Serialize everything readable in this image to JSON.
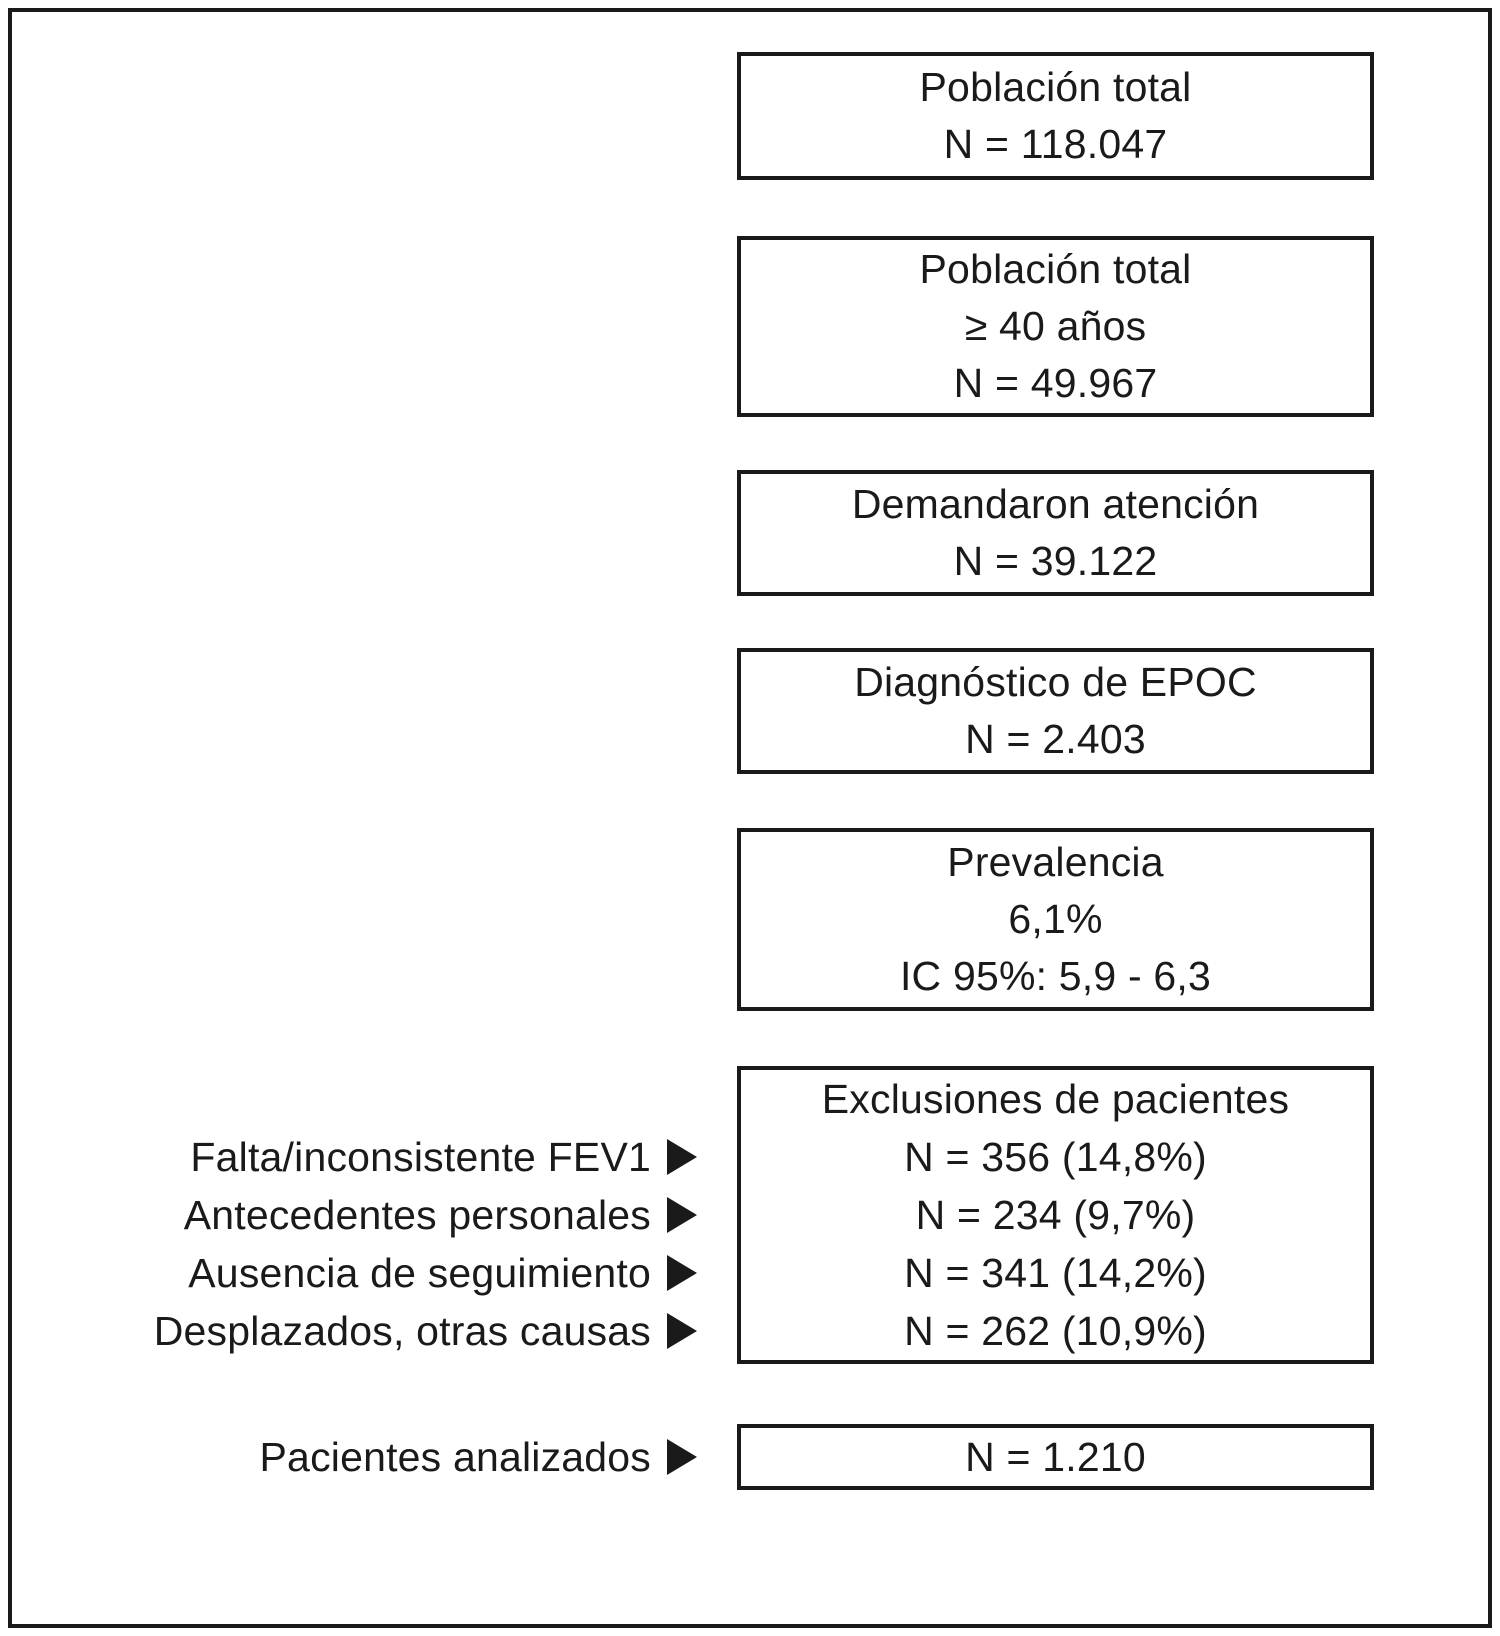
{
  "diagram": {
    "colors": {
      "ink": "#1a1a1a",
      "background": "#ffffff"
    },
    "boxes": [
      {
        "id": "poblacion-total",
        "lines": [
          "Población total",
          "N = 118.047"
        ]
      },
      {
        "id": "poblacion-40",
        "lines": [
          "Población total",
          "≥ 40 años",
          "N = 49.967"
        ]
      },
      {
        "id": "demandaron",
        "lines": [
          "Demandaron atención",
          "N = 39.122"
        ]
      },
      {
        "id": "diagnostico",
        "lines": [
          "Diagnóstico de EPOC",
          "N = 2.403"
        ]
      },
      {
        "id": "prevalencia",
        "lines": [
          "Prevalencia",
          "6,1%",
          "IC 95%: 5,9 - 6,3"
        ]
      },
      {
        "id": "exclusiones",
        "lines": [
          "Exclusiones de pacientes",
          "N = 356 (14,8%)",
          "N = 234 (9,7%)",
          "N = 341 (14,2%)",
          "N = 262 (10,9%)"
        ]
      },
      {
        "id": "analizados",
        "lines": [
          "N = 1.210"
        ]
      }
    ],
    "left_labels": {
      "fev1": "Falta/inconsistente FEV1",
      "antecedentes": "Antecedentes personales",
      "ausencia": "Ausencia de seguimiento",
      "desplazados": "Desplazados, otras causas",
      "analizados": "Pacientes analizados"
    }
  }
}
